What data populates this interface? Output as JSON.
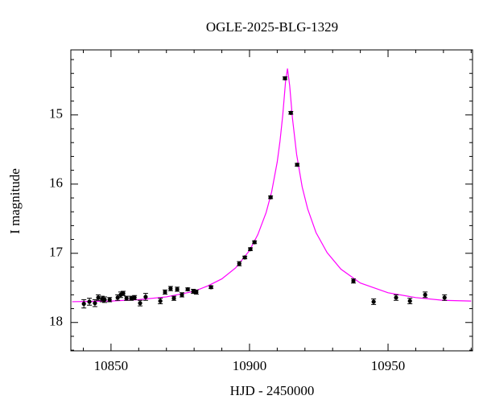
{
  "chart_data": {
    "type": "scatter",
    "title": "OGLE-2025-BLG-1329",
    "x_label": "HJD - 2450000",
    "y_label": "I magnitude",
    "x": [
      10840.2,
      10842.2,
      10844.2,
      10845.4,
      10846.8,
      10847.7,
      10849.5,
      10852.4,
      10853.5,
      10854.4,
      10855.6,
      10857.3,
      10858.5,
      10860.5,
      10862.5,
      10867.8,
      10869.5,
      10871.5,
      10872.7,
      10873.9,
      10875.6,
      10877.7,
      10879.7,
      10880.8,
      10886.1,
      10896.3,
      10898.3,
      10900.3,
      10901.8,
      10907.6,
      10912.8,
      10914.9,
      10917.2,
      10937.5,
      10944.8,
      10952.9,
      10957.9,
      10963.4,
      10970.4
    ],
    "values": [
      17.73,
      17.7,
      17.72,
      17.64,
      17.66,
      17.67,
      17.67,
      17.64,
      17.6,
      17.58,
      17.65,
      17.65,
      17.64,
      17.72,
      17.63,
      17.69,
      17.56,
      17.51,
      17.65,
      17.52,
      17.6,
      17.52,
      17.55,
      17.56,
      17.49,
      17.15,
      17.06,
      16.94,
      16.84,
      16.19,
      14.47,
      14.97,
      15.72,
      17.4,
      17.7,
      17.64,
      17.69,
      17.6,
      17.64
    ],
    "errors": [
      0.06,
      0.05,
      0.05,
      0.04,
      0.04,
      0.04,
      0.03,
      0.04,
      0.04,
      0.03,
      0.03,
      0.03,
      0.03,
      0.04,
      0.05,
      0.04,
      0.03,
      0.03,
      0.03,
      0.03,
      0.03,
      0.02,
      0.03,
      0.03,
      0.02,
      0.03,
      0.02,
      0.02,
      0.02,
      0.02,
      0.02,
      0.02,
      0.02,
      0.03,
      0.04,
      0.04,
      0.04,
      0.04,
      0.04
    ],
    "color": "#000000",
    "model_x": [
      10836,
      10850,
      10860,
      10870,
      10880,
      10885,
      10890,
      10895,
      10900,
      10903,
      10906,
      10908,
      10910,
      10911,
      10912,
      10913,
      10913.7,
      10914.5,
      10915.5,
      10917,
      10919,
      10921,
      10924,
      10928,
      10933,
      10940,
      10950,
      10960,
      10970,
      10980
    ],
    "model_values": [
      17.7,
      17.69,
      17.67,
      17.63,
      17.55,
      17.47,
      17.37,
      17.21,
      16.96,
      16.73,
      16.41,
      16.11,
      15.68,
      15.38,
      15.0,
      14.52,
      14.33,
      14.58,
      15.05,
      15.57,
      16.04,
      16.36,
      16.7,
      16.99,
      17.23,
      17.43,
      17.57,
      17.64,
      17.68,
      17.69
    ],
    "model_color": "#ff00ff",
    "xlim": [
      10835.5,
      10980.5
    ],
    "ylim": [
      18.41,
      14.06
    ],
    "xticks": [
      10850,
      10900,
      10950
    ],
    "x_minor_ticks": [
      10840,
      10860,
      10870,
      10880,
      10890,
      10910,
      10920,
      10930,
      10940,
      10960,
      10970,
      10980
    ],
    "yticks": [
      15,
      16,
      17,
      18
    ],
    "y_minor_ticks": [
      14.2,
      14.4,
      14.6,
      14.8,
      15.2,
      15.4,
      15.6,
      15.8,
      16.2,
      16.4,
      16.6,
      16.8,
      17.2,
      17.4,
      17.6,
      17.8,
      18.2,
      18.4
    ]
  }
}
